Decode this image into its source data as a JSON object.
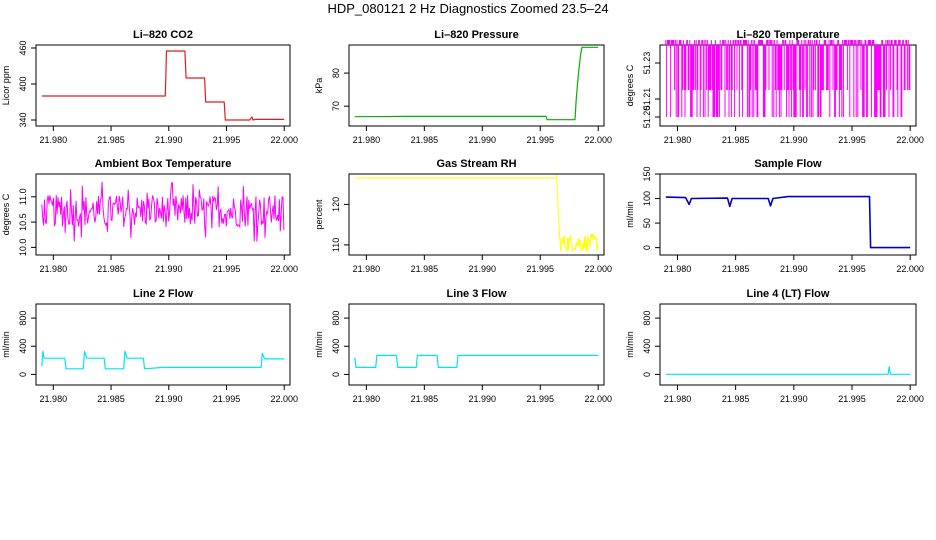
{
  "title": "HDP_080121  2 Hz Diagnostics Zoomed 23.5–24",
  "x_ticks": [
    "21.980",
    "21.985",
    "21.990",
    "21.995",
    "22.000"
  ],
  "chart_data": [
    {
      "type": "line",
      "title": "Li–820 CO2",
      "ylabel": "Licor ppm",
      "color": "#e31a1c",
      "xlim": [
        21.9785,
        22.0005
      ],
      "ylim": [
        330,
        465
      ],
      "yticks": [
        {
          "v": 460,
          "label": "460"
        },
        {
          "v": 400,
          "label": "400"
        },
        {
          "v": 340,
          "label": "340"
        }
      ],
      "series": [
        {
          "x": [
            21.979,
            21.9897,
            21.9898,
            21.9914,
            21.9915,
            21.9931,
            21.9932,
            21.9948,
            21.9949,
            21.997,
            21.9972,
            21.9973,
            21.9975,
            22.0
          ],
          "values": [
            380,
            380,
            455,
            455,
            410,
            410,
            370,
            370,
            340,
            340,
            345,
            340,
            341,
            341
          ]
        }
      ]
    },
    {
      "type": "line",
      "title": "Li–820 Pressure",
      "ylabel": "kPa",
      "color": "#00b000",
      "xlim": [
        21.9785,
        22.0005
      ],
      "ylim": [
        64.0,
        88.5
      ],
      "yticks": [
        {
          "v": 80,
          "label": "80"
        },
        {
          "v": 70,
          "label": "70"
        }
      ],
      "series": [
        {
          "x": [
            21.979,
            21.9835,
            21.9875,
            21.9955,
            21.9956,
            21.998,
            21.9981,
            21.9983,
            21.9985,
            21.9986,
            22.0
          ],
          "values": [
            66.8,
            66.9,
            66.9,
            66.9,
            65.9,
            65.9,
            72.0,
            80.0,
            86.0,
            87.8,
            87.8
          ]
        }
      ]
    },
    {
      "type": "line",
      "title": "Li–820 Temperature",
      "ylabel": "degrees C",
      "color": "#ff00ff",
      "xlim": [
        21.9785,
        22.0005
      ],
      "ylim": [
        51.195,
        51.24
      ],
      "yticks": [
        {
          "v": 51.23,
          "label": "51.23"
        },
        {
          "v": 51.21,
          "label": "51.21"
        },
        {
          "v": 51.2,
          "label": "51.20"
        }
      ],
      "series": [
        {
          "x": [
            21.979,
            22.0
          ],
          "values": [
            51.2,
            51.24
          ]
        }
      ]
    },
    {
      "type": "line",
      "title": "Ambient Box Temperature",
      "ylabel": "degrees C",
      "color": "#ff00ff",
      "xlim": [
        21.9785,
        22.0005
      ],
      "ylim": [
        9.85,
        11.45
      ],
      "yticks": [
        {
          "v": 11.0,
          "label": "11.0"
        },
        {
          "v": 10.5,
          "label": "10.5"
        },
        {
          "v": 10.0,
          "label": "10.0"
        }
      ],
      "series": [
        {
          "x": [
            21.979,
            22.0
          ],
          "values": [
            10.2,
            11.35
          ]
        }
      ]
    },
    {
      "type": "line",
      "title": "Gas Stream RH",
      "ylabel": "percent",
      "color": "#ffff00",
      "xlim": [
        21.9785,
        22.0005
      ],
      "ylim": [
        107.5,
        127.5
      ],
      "yticks": [
        {
          "v": 120,
          "label": "120"
        },
        {
          "v": 110,
          "label": "110"
        }
      ],
      "series": [
        {
          "x": [
            21.979,
            21.9964,
            21.9967,
            22.0
          ],
          "values": [
            126.5,
            126.5,
            110.0,
            110.0
          ]
        }
      ]
    },
    {
      "type": "line",
      "title": "Sample Flow",
      "ylabel": "ml/min",
      "color": "#0000cc",
      "xlim": [
        21.9785,
        22.0005
      ],
      "ylim": [
        -15,
        150
      ],
      "yticks": [
        {
          "v": 0,
          "label": "0"
        },
        {
          "v": 50,
          "label": "50"
        },
        {
          "v": 100,
          "label": "100"
        },
        {
          "v": 150,
          "label": "150"
        }
      ],
      "series": [
        {
          "x": [
            21.979,
            21.9807,
            21.981,
            21.9812,
            21.9843,
            21.9845,
            21.9847,
            21.9878,
            21.988,
            21.9882,
            21.9895,
            21.9965,
            21.9966,
            22.0
          ],
          "values": [
            103,
            102,
            88,
            100,
            101,
            84,
            100,
            100,
            85,
            100,
            104,
            104,
            0,
            0
          ]
        }
      ]
    },
    {
      "type": "line",
      "title": "Line 2 Flow",
      "ylabel": "ml/min",
      "color": "#00e5ee",
      "xlim": [
        21.9785,
        22.0005
      ],
      "ylim": [
        -150,
        1000
      ],
      "yticks": [
        {
          "v": 0,
          "label": "0"
        },
        {
          "v": 400,
          "label": "400"
        },
        {
          "v": 800,
          "label": "800"
        }
      ],
      "series": [
        {
          "x": [
            21.979,
            21.9791,
            21.9792,
            21.981,
            21.9811,
            21.9826,
            21.9827,
            21.9829,
            21.9844,
            21.9845,
            21.9861,
            21.9862,
            21.9864,
            21.9878,
            21.9879,
            21.9895,
            21.998,
            21.9981,
            21.9983,
            22.0
          ],
          "values": [
            120,
            330,
            230,
            230,
            80,
            80,
            330,
            230,
            230,
            80,
            80,
            330,
            230,
            230,
            80,
            100,
            100,
            300,
            220,
            220
          ]
        }
      ]
    },
    {
      "type": "line",
      "title": "Line 3 Flow",
      "ylabel": "ml/min",
      "color": "#00e5ee",
      "xlim": [
        21.9785,
        22.0005
      ],
      "ylim": [
        -150,
        1000
      ],
      "yticks": [
        {
          "v": 0,
          "label": "0"
        },
        {
          "v": 400,
          "label": "400"
        },
        {
          "v": 800,
          "label": "800"
        }
      ],
      "series": [
        {
          "x": [
            21.979,
            21.9791,
            21.9792,
            21.9808,
            21.9809,
            21.9826,
            21.9827,
            21.9843,
            21.9844,
            21.9861,
            21.9862,
            21.9878,
            21.9879,
            22.0
          ],
          "values": [
            240,
            100,
            100,
            100,
            270,
            270,
            100,
            100,
            270,
            270,
            100,
            100,
            270,
            270
          ]
        }
      ]
    },
    {
      "type": "line",
      "title": "Line 4 (LT) Flow",
      "ylabel": "ml/min",
      "color": "#00e5ee",
      "xlim": [
        21.9785,
        22.0005
      ],
      "ylim": [
        -150,
        1000
      ],
      "yticks": [
        {
          "v": 0,
          "label": "0"
        },
        {
          "v": 400,
          "label": "400"
        },
        {
          "v": 800,
          "label": "800"
        }
      ],
      "series": [
        {
          "x": [
            21.979,
            21.9981,
            21.9982,
            21.9983,
            22.0
          ],
          "values": [
            2,
            2,
            110,
            2,
            2
          ]
        }
      ]
    }
  ]
}
